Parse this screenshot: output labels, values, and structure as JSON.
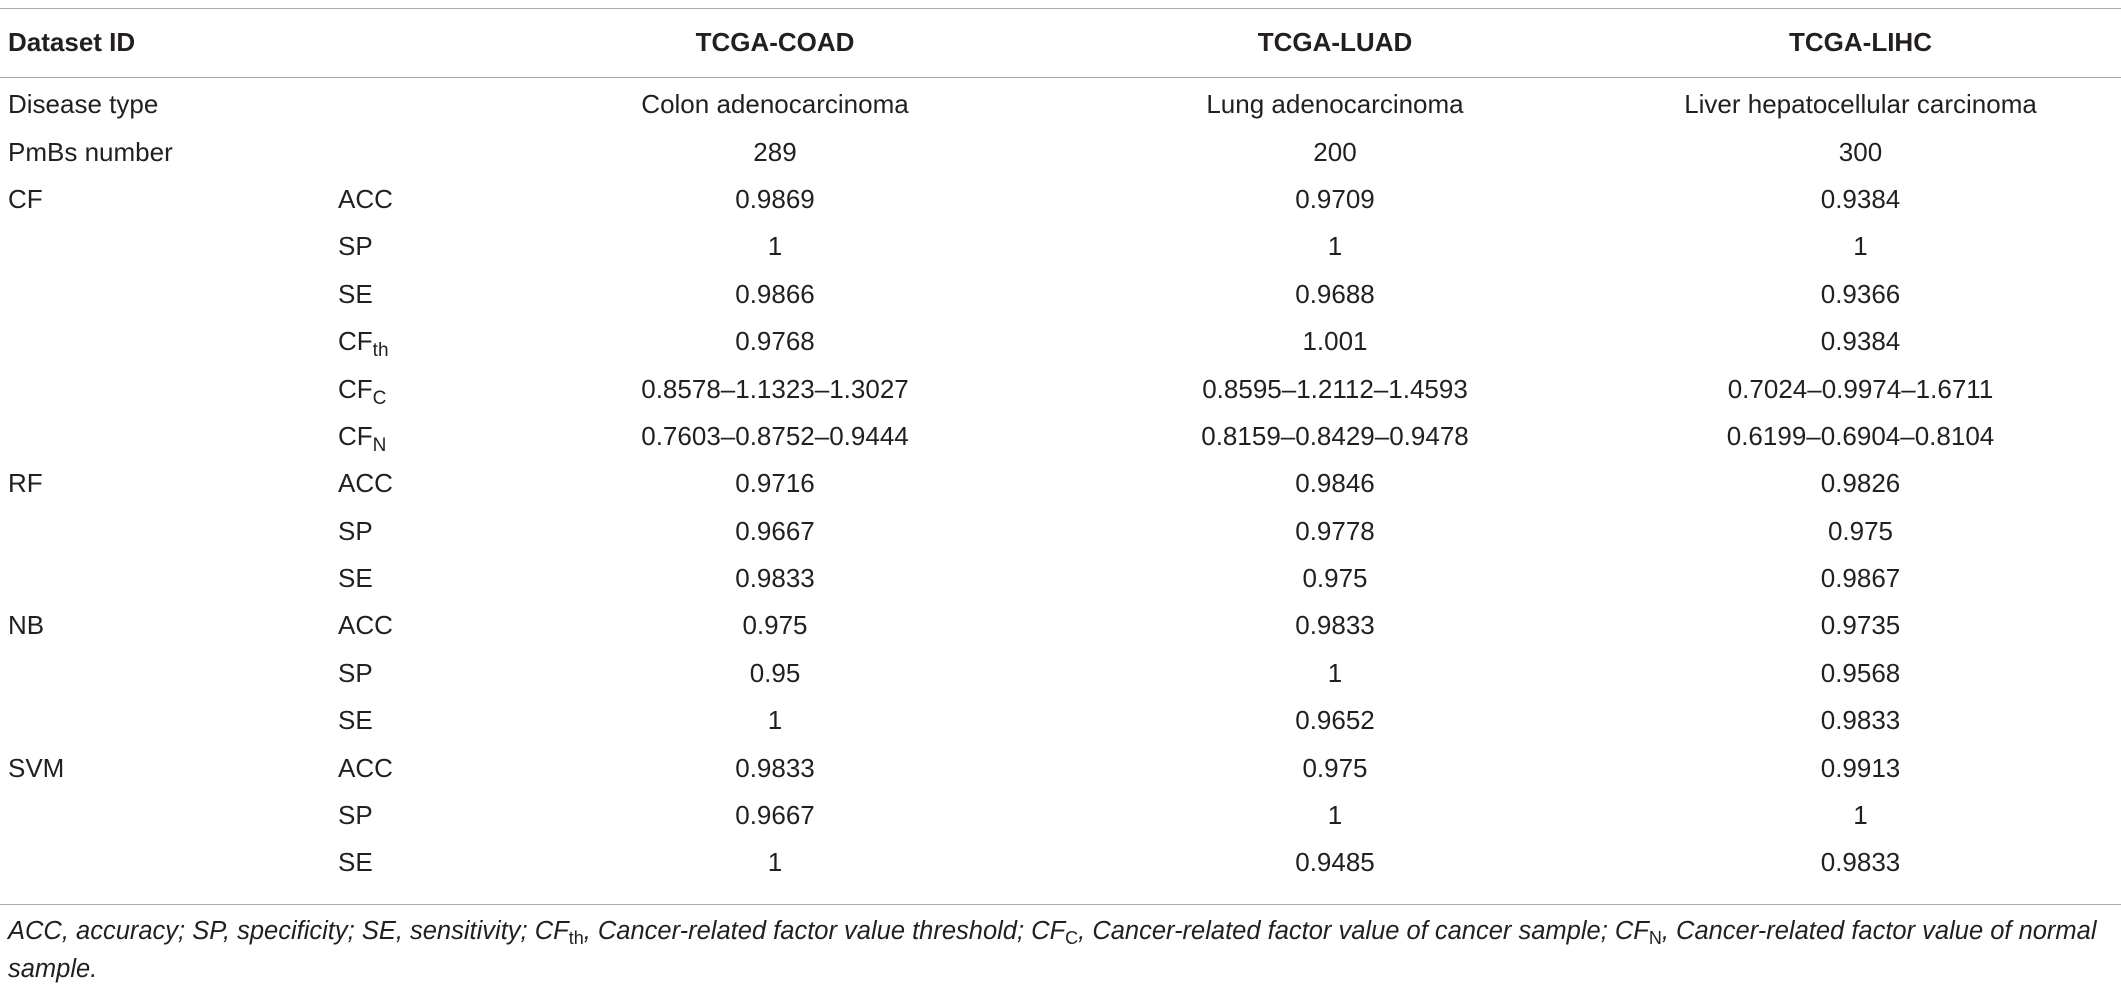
{
  "table": {
    "headers": [
      "Dataset ID",
      "",
      "TCGA-COAD",
      "TCGA-LUAD",
      "TCGA-LIHC"
    ],
    "rows": [
      {
        "label": "Disease type",
        "metric": "",
        "metric_sub": "",
        "values": [
          "Colon adenocarcinoma",
          "Lung adenocarcinoma",
          "Liver hepatocellular carcinoma"
        ]
      },
      {
        "label": "PmBs number",
        "metric": "",
        "metric_sub": "",
        "values": [
          "289",
          "200",
          "300"
        ]
      },
      {
        "label": "CF",
        "metric": "ACC",
        "metric_sub": "",
        "values": [
          "0.9869",
          "0.9709",
          "0.9384"
        ]
      },
      {
        "label": "",
        "metric": "SP",
        "metric_sub": "",
        "values": [
          "1",
          "1",
          "1"
        ]
      },
      {
        "label": "",
        "metric": "SE",
        "metric_sub": "",
        "values": [
          "0.9866",
          "0.9688",
          "0.9366"
        ]
      },
      {
        "label": "",
        "metric": "CF",
        "metric_sub": "th",
        "values": [
          "0.9768",
          "1.001",
          "0.9384"
        ]
      },
      {
        "label": "",
        "metric": "CF",
        "metric_sub": "C",
        "values": [
          "0.8578–1.1323–1.3027",
          "0.8595–1.2112–1.4593",
          "0.7024–0.9974–1.6711"
        ]
      },
      {
        "label": "",
        "metric": "CF",
        "metric_sub": "N",
        "values": [
          "0.7603–0.8752–0.9444",
          "0.8159–0.8429–0.9478",
          "0.6199–0.6904–0.8104"
        ]
      },
      {
        "label": "RF",
        "metric": "ACC",
        "metric_sub": "",
        "values": [
          "0.9716",
          "0.9846",
          "0.9826"
        ]
      },
      {
        "label": "",
        "metric": "SP",
        "metric_sub": "",
        "values": [
          "0.9667",
          "0.9778",
          "0.975"
        ]
      },
      {
        "label": "",
        "metric": "SE",
        "metric_sub": "",
        "values": [
          "0.9833",
          "0.975",
          "0.9867"
        ]
      },
      {
        "label": "NB",
        "metric": "ACC",
        "metric_sub": "",
        "values": [
          "0.975",
          "0.9833",
          "0.9735"
        ]
      },
      {
        "label": "",
        "metric": "SP",
        "metric_sub": "",
        "values": [
          "0.95",
          "1",
          "0.9568"
        ]
      },
      {
        "label": "",
        "metric": "SE",
        "metric_sub": "",
        "values": [
          "1",
          "0.9652",
          "0.9833"
        ]
      },
      {
        "label": "SVM",
        "metric": "ACC",
        "metric_sub": "",
        "values": [
          "0.9833",
          "0.975",
          "0.9913"
        ]
      },
      {
        "label": "",
        "metric": "SP",
        "metric_sub": "",
        "values": [
          "0.9667",
          "1",
          "1"
        ]
      },
      {
        "label": "",
        "metric": "SE",
        "metric_sub": "",
        "values": [
          "1",
          "0.9485",
          "0.9833"
        ]
      }
    ]
  },
  "footnote": {
    "p1": "ACC, accuracy; SP, specificity; SE, sensitivity; CF",
    "sub1": "th",
    "p2": ", Cancer-related factor value threshold; CF",
    "sub2": "C",
    "p3": ", Cancer-related factor value of cancer sample; CF",
    "sub3": "N",
    "p4": ", Cancer-related factor value of normal sample."
  }
}
